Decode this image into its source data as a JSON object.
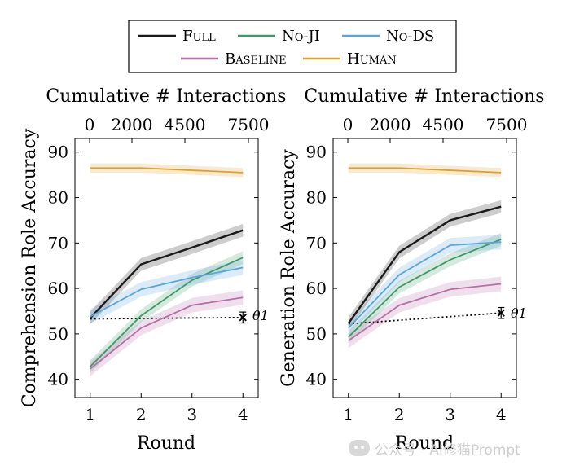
{
  "legend": [
    {
      "label": "Full",
      "color": "#1a1a1a"
    },
    {
      "label": "No-JI",
      "color": "#3f9a6b"
    },
    {
      "label": "No-DS",
      "color": "#5aa6dc"
    },
    {
      "label": "Baseline",
      "color": "#b66fa7"
    },
    {
      "label": "Human",
      "color": "#dda12b"
    }
  ],
  "watermark": {
    "text": "公众号 · AI修猫Prompt"
  },
  "chart_data": [
    {
      "type": "line",
      "title": "Cumulative # Interactions",
      "xlabel": "Round",
      "ylabel": "Comprehension Role Accuracy",
      "x": [
        1,
        2,
        3,
        4
      ],
      "xticks": [
        "1",
        "2",
        "3",
        "4"
      ],
      "top_ticks": [
        "0",
        "2000",
        "4500",
        "7500"
      ],
      "xlim": [
        0.7,
        4.3
      ],
      "ylim": [
        36,
        93
      ],
      "yticks": [
        40,
        50,
        60,
        70,
        80,
        90
      ],
      "series": [
        {
          "name": "Full",
          "color": "#1a1a1a",
          "values": [
            53.5,
            65.3,
            69,
            72.8
          ],
          "band": 1.4
        },
        {
          "name": "No-JI",
          "color": "#3f9a6b",
          "values": [
            42.8,
            54,
            61.8,
            66.8
          ],
          "band": 1.4
        },
        {
          "name": "No-DS",
          "color": "#5aa6dc",
          "values": [
            53.8,
            59.8,
            62.4,
            64.6
          ],
          "band": 1.6
        },
        {
          "name": "Baseline",
          "color": "#b66fa7",
          "values": [
            42.3,
            51.3,
            56.3,
            58
          ],
          "band": 1.6
        },
        {
          "name": "Human",
          "color": "#dda12b",
          "values": [
            86.5,
            86.5,
            86,
            85.5
          ],
          "band": 1
        }
      ],
      "threshold": {
        "label": "θ1",
        "start": 53.3,
        "end": 53.6,
        "error": 1.2
      }
    },
    {
      "type": "line",
      "title": "Cumulative # Interactions",
      "xlabel": "Round",
      "ylabel": "Generation Role Accuracy",
      "x": [
        1,
        2,
        3,
        4
      ],
      "xticks": [
        "1",
        "2",
        "3",
        "4"
      ],
      "top_ticks": [
        "0",
        "2000",
        "4500",
        "7500"
      ],
      "xlim": [
        0.7,
        4.3
      ],
      "ylim": [
        36,
        93
      ],
      "yticks": [
        40,
        50,
        60,
        70,
        80,
        90
      ],
      "series": [
        {
          "name": "Full",
          "color": "#1a1a1a",
          "values": [
            52.3,
            68,
            75,
            78
          ],
          "band": 1.4
        },
        {
          "name": "No-JI",
          "color": "#3f9a6b",
          "values": [
            49.3,
            60.3,
            66.3,
            70.8
          ],
          "band": 1.4
        },
        {
          "name": "No-DS",
          "color": "#5aa6dc",
          "values": [
            51.3,
            63,
            69.5,
            70.2
          ],
          "band": 1.6
        },
        {
          "name": "Baseline",
          "color": "#b66fa7",
          "values": [
            48.5,
            56.3,
            59.8,
            61
          ],
          "band": 1.6
        },
        {
          "name": "Human",
          "color": "#dda12b",
          "values": [
            86.5,
            86.5,
            86,
            85.5
          ],
          "band": 1
        }
      ],
      "threshold": {
        "label": "θ1",
        "start": 52.2,
        "end": 54.6,
        "error": 1.2
      }
    }
  ]
}
